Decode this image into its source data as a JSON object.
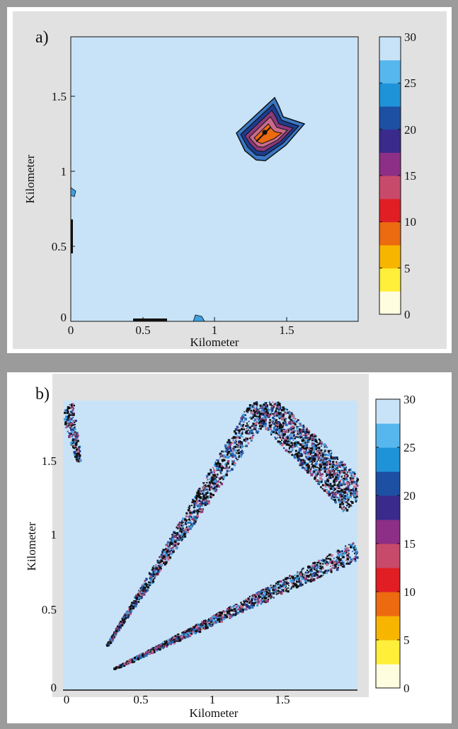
{
  "panels": [
    {
      "label": "a)",
      "xlabel": "Kilometer",
      "ylabel": "Kilometer",
      "x_ticks": [
        "0",
        "0.5",
        "1",
        "1.5"
      ],
      "y_ticks": [
        "0",
        "0.5",
        "1",
        "1.5"
      ],
      "colorbar_ticks": [
        "0",
        "5",
        "10",
        "15",
        "20",
        "25",
        "30"
      ]
    },
    {
      "label": "b)",
      "xlabel": "Kilometer",
      "ylabel": "Kilometer",
      "x_ticks": [
        "0",
        "0.5",
        "1",
        "1.5"
      ],
      "y_ticks": [
        "0",
        "0.5",
        "1",
        "1.5"
      ],
      "colorbar_ticks": [
        "0",
        "5",
        "10",
        "15",
        "20",
        "25",
        "30"
      ]
    }
  ],
  "chart_data": [
    {
      "type": "heatmap",
      "label": "a)",
      "xlabel": "Kilometer",
      "ylabel": "Kilometer",
      "xlim": [
        0,
        2
      ],
      "ylim": [
        0,
        1.9
      ],
      "colorbar_range": [
        0,
        30
      ],
      "colorbar_ticks": [
        0,
        5,
        10,
        15,
        20,
        25,
        30
      ],
      "background_value": 30,
      "features": [
        {
          "kind": "contour-blob",
          "x": [
            1.15,
            1.6
          ],
          "y": [
            1.15,
            1.55
          ],
          "min_value": 11,
          "max_value": 30
        }
      ]
    },
    {
      "type": "heatmap",
      "label": "b)",
      "xlabel": "Kilometer",
      "ylabel": "Kilometer",
      "xlim": [
        0,
        2
      ],
      "ylim": [
        0,
        1.9
      ],
      "colorbar_range": [
        0,
        30
      ],
      "colorbar_ticks": [
        0,
        5,
        10,
        15,
        20,
        25,
        30
      ],
      "background_value": 30,
      "features": [
        {
          "kind": "scatter-band",
          "x": [
            0.3,
            1.4
          ],
          "y": [
            0.4,
            1.9
          ]
        },
        {
          "kind": "scatter-band",
          "x": [
            0.25,
            2.0
          ],
          "y": [
            0.3,
            0.85
          ]
        },
        {
          "kind": "scatter-band",
          "x": [
            1.3,
            2.0
          ],
          "y": [
            0.9,
            1.9
          ]
        },
        {
          "kind": "scatter-patch",
          "x": [
            0,
            0.1
          ],
          "y": [
            1.45,
            1.9
          ]
        }
      ]
    }
  ],
  "colors": {
    "background_field": "#c8e3f7",
    "colormap": [
      "#fffde0",
      "#ffef3a",
      "#f7b500",
      "#ec6a10",
      "#e01e24",
      "#c84a6a",
      "#8d2f86",
      "#3a2a8c",
      "#1d4fa3",
      "#1f93d8",
      "#56b6ee",
      "#c8e3f7"
    ]
  }
}
